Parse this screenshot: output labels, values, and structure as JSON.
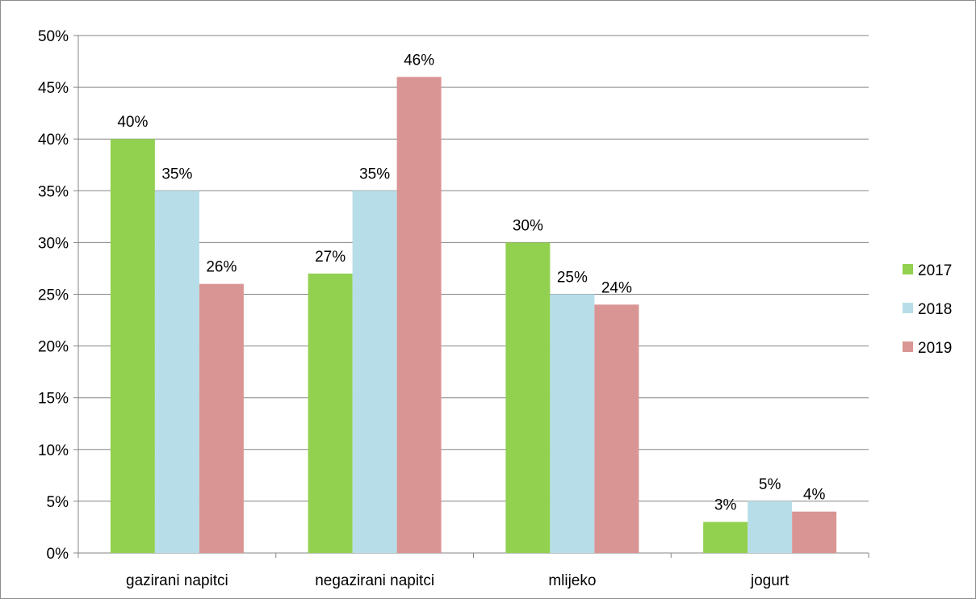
{
  "chart_data": {
    "type": "bar",
    "categories": [
      "gazirani napitci",
      "negazirani napitci",
      "mlijeko",
      "jogurt"
    ],
    "series": [
      {
        "name": "2017",
        "color": "#92d050",
        "values": [
          40,
          27,
          30,
          3
        ],
        "labels": [
          "40%",
          "27%",
          "30%",
          "3%"
        ]
      },
      {
        "name": "2018",
        "color": "#b7dee8",
        "values": [
          35,
          35,
          25,
          5
        ],
        "labels": [
          "35%",
          "35%",
          "25%",
          "5%"
        ]
      },
      {
        "name": "2019",
        "color": "#d99594",
        "values": [
          26,
          46,
          24,
          4
        ],
        "labels": [
          "26%",
          "46%",
          "24%",
          "4%"
        ]
      }
    ],
    "ylim": [
      0,
      50
    ],
    "yticks": [
      "0%",
      "5%",
      "10%",
      "15%",
      "20%",
      "25%",
      "30%",
      "35%",
      "40%",
      "45%",
      "50%"
    ],
    "grid": true,
    "legend_position": "right",
    "title": "",
    "xlabel": "",
    "ylabel": ""
  }
}
